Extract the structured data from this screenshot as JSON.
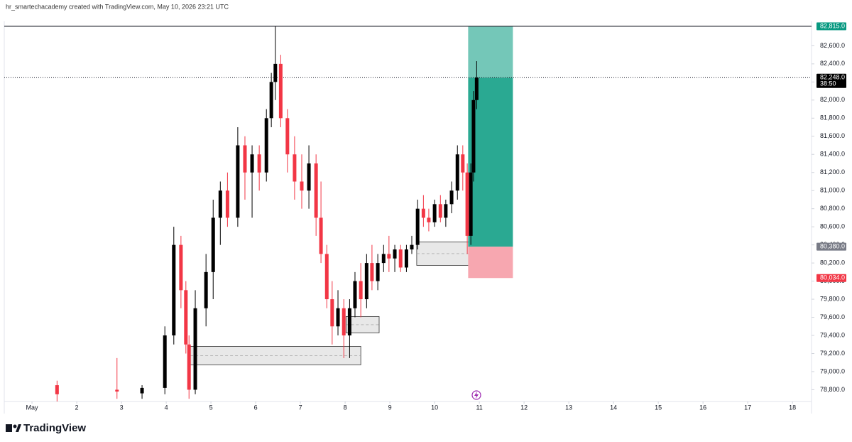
{
  "header": {
    "text": "hr_smartechacademy created with TradingView.com, May 10, 2026 23:21 UTC"
  },
  "footer": {
    "logo": "TradingView"
  },
  "chart_data": {
    "type": "candlestick",
    "up_color": "#000000",
    "down_color": "#f23645",
    "xlim": [
      0.38,
      18.41
    ],
    "xticks": [
      {
        "value": 1,
        "label": "May"
      },
      2,
      3,
      4,
      5,
      6,
      7,
      8,
      9,
      10,
      11,
      12,
      13,
      14,
      15,
      16,
      17,
      18
    ],
    "ylim": [
      78670,
      82870
    ],
    "yticks": [
      {
        "value": 78800,
        "label": "78,800.0"
      },
      {
        "value": 79000,
        "label": "79,000.0"
      },
      {
        "value": 79200,
        "label": "79,200.0"
      },
      {
        "value": 79400,
        "label": "79,400.0"
      },
      {
        "value": 79600,
        "label": "79,600.0"
      },
      {
        "value": 79800,
        "label": "79,800.0"
      },
      {
        "value": 80000,
        "label": "80,000.0"
      },
      {
        "value": 80200,
        "label": "80,200.0"
      },
      {
        "value": 80400,
        "label": "80,400.0"
      },
      {
        "value": 80600,
        "label": "80,600.0"
      },
      {
        "value": 80800,
        "label": "80,800.0"
      },
      {
        "value": 81000,
        "label": "81,000.0"
      },
      {
        "value": 81200,
        "label": "81,200.0"
      },
      {
        "value": 81400,
        "label": "81,400.0"
      },
      {
        "value": 81600,
        "label": "81,600.0"
      },
      {
        "value": 81800,
        "label": "81,800.0"
      },
      {
        "value": 82000,
        "label": "82,000.0"
      },
      {
        "value": 82200,
        "label": "82,200.0"
      },
      {
        "value": 82400,
        "label": "82,400.0"
      },
      {
        "value": 82600,
        "label": "82,600.0"
      }
    ],
    "x": [
      1.56,
      2.9,
      3.46,
      3.97,
      4.17,
      4.33,
      4.44,
      4.51,
      4.65,
      4.89,
      5.05,
      5.21,
      5.37,
      5.6,
      5.76,
      5.92,
      6.08,
      6.24,
      6.35,
      6.44,
      6.56,
      6.71,
      6.87,
      7.03,
      7.19,
      7.35,
      7.46,
      7.59,
      7.71,
      7.84,
      7.97,
      8.1,
      8.22,
      8.35,
      8.48,
      8.6,
      8.73,
      8.86,
      8.98,
      9.11,
      9.24,
      9.37,
      9.49,
      9.62,
      9.75,
      9.87,
      10.0,
      10.13,
      10.25,
      10.38,
      10.51,
      10.63,
      10.73,
      10.81,
      10.87,
      10.94
    ],
    "open": [
      78850,
      78800,
      78760,
      78820,
      79400,
      80400,
      79900,
      79300,
      78800,
      79700,
      80100,
      80700,
      81000,
      80700,
      81500,
      81200,
      81400,
      81200,
      81800,
      82200,
      82400,
      81800,
      81400,
      81100,
      81000,
      81300,
      80700,
      80300,
      79800,
      79500,
      79700,
      79400,
      79700,
      80000,
      79800,
      80200,
      80000,
      80200,
      80300,
      80250,
      80350,
      80150,
      80350,
      80400,
      80800,
      80700,
      80650,
      80850,
      80700,
      80850,
      81000,
      81400,
      81200,
      80500,
      81200,
      82000
    ],
    "high": [
      78900,
      79150,
      78850,
      79500,
      80600,
      80500,
      80000,
      79400,
      79900,
      80300,
      80900,
      81100,
      81200,
      81700,
      81600,
      81500,
      81500,
      81900,
      82300,
      82815,
      82500,
      81900,
      81600,
      81400,
      81500,
      81400,
      81100,
      80400,
      80000,
      79900,
      79800,
      79800,
      80100,
      80200,
      80300,
      80400,
      80300,
      80400,
      80500,
      80400,
      80400,
      80400,
      80500,
      80900,
      80950,
      80800,
      80900,
      80950,
      80900,
      81100,
      81500,
      81500,
      81300,
      81300,
      82100,
      82430
    ],
    "low": [
      78670,
      78700,
      78700,
      78750,
      79300,
      79700,
      79200,
      78700,
      78750,
      79500,
      79800,
      80400,
      80600,
      80600,
      80900,
      80700,
      81000,
      81100,
      81700,
      82000,
      81700,
      81200,
      80900,
      80800,
      80800,
      80500,
      80200,
      79700,
      79300,
      79400,
      79150,
      79150,
      79600,
      79600,
      79700,
      79900,
      79900,
      80100,
      80100,
      80100,
      80100,
      80100,
      80300,
      80350,
      80600,
      80550,
      80600,
      80650,
      80600,
      80750,
      80900,
      81000,
      80300,
      80400,
      81100,
      81900
    ],
    "close": [
      78750,
      78780,
      78820,
      79400,
      80400,
      79900,
      79300,
      78800,
      79700,
      80100,
      80700,
      81000,
      80700,
      81500,
      81200,
      81400,
      81200,
      81800,
      82200,
      82400,
      81800,
      81400,
      81100,
      81000,
      81300,
      80700,
      80300,
      79800,
      79500,
      79700,
      79400,
      79700,
      80000,
      79800,
      80200,
      80000,
      80200,
      80300,
      80250,
      80350,
      80150,
      80350,
      80400,
      80800,
      80700,
      80650,
      80850,
      80700,
      80850,
      81000,
      81400,
      81200,
      80500,
      81200,
      82000,
      82248
    ],
    "zones": [
      {
        "x": [
          4.54,
          8.35
        ],
        "price": [
          79075,
          79279
        ]
      },
      {
        "x": [
          8.02,
          8.76
        ],
        "price": [
          79428,
          79609
        ]
      },
      {
        "x": [
          9.6,
          10.76
        ],
        "price": [
          80174,
          80433
        ]
      }
    ],
    "position": {
      "x": [
        10.75,
        11.75
      ],
      "entry": 80380,
      "target": 82815,
      "stop": 80034,
      "current": 82248,
      "profit_color": "#2aa992",
      "loss_color": "#f7a7b0"
    },
    "price_labels": [
      {
        "value": 82815,
        "label": "82,815.0",
        "color": "#089981"
      },
      {
        "value": 82248,
        "label": "82,248.0",
        "color": "#000000",
        "countdown": "38:50"
      },
      {
        "value": 80380,
        "label": "80,380.0",
        "color": "#787b86"
      },
      {
        "value": 80034,
        "label": "80,034.0",
        "color": "#f23645"
      }
    ]
  }
}
